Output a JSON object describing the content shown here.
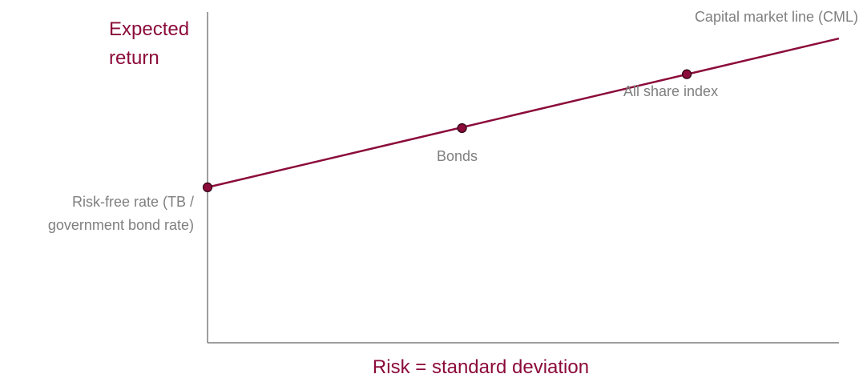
{
  "colors": {
    "accent": "#8B0B3A",
    "label": "#7f7f7f",
    "axis": "#7f7f7f",
    "background": "#ffffff"
  },
  "chart_data": {
    "type": "line",
    "title": "",
    "ylabel": [
      "Expected",
      "return"
    ],
    "xlabel": "Risk = standard deviation",
    "xlim": [
      0,
      100
    ],
    "ylim": [
      0,
      100
    ],
    "grid": false,
    "series": [
      {
        "name": "Capital market line (CML)",
        "x": [
          0,
          100
        ],
        "y": [
          47,
          92
        ]
      }
    ],
    "points": [
      {
        "label": [
          "Risk-free rate (TB /",
          "government bond rate)"
        ],
        "x": 0,
        "y": 47
      },
      {
        "label": [
          "Bonds"
        ],
        "x": 40.3,
        "y": 64.9
      },
      {
        "label": [
          "All share index"
        ],
        "x": 75.9,
        "y": 81.2
      }
    ]
  }
}
